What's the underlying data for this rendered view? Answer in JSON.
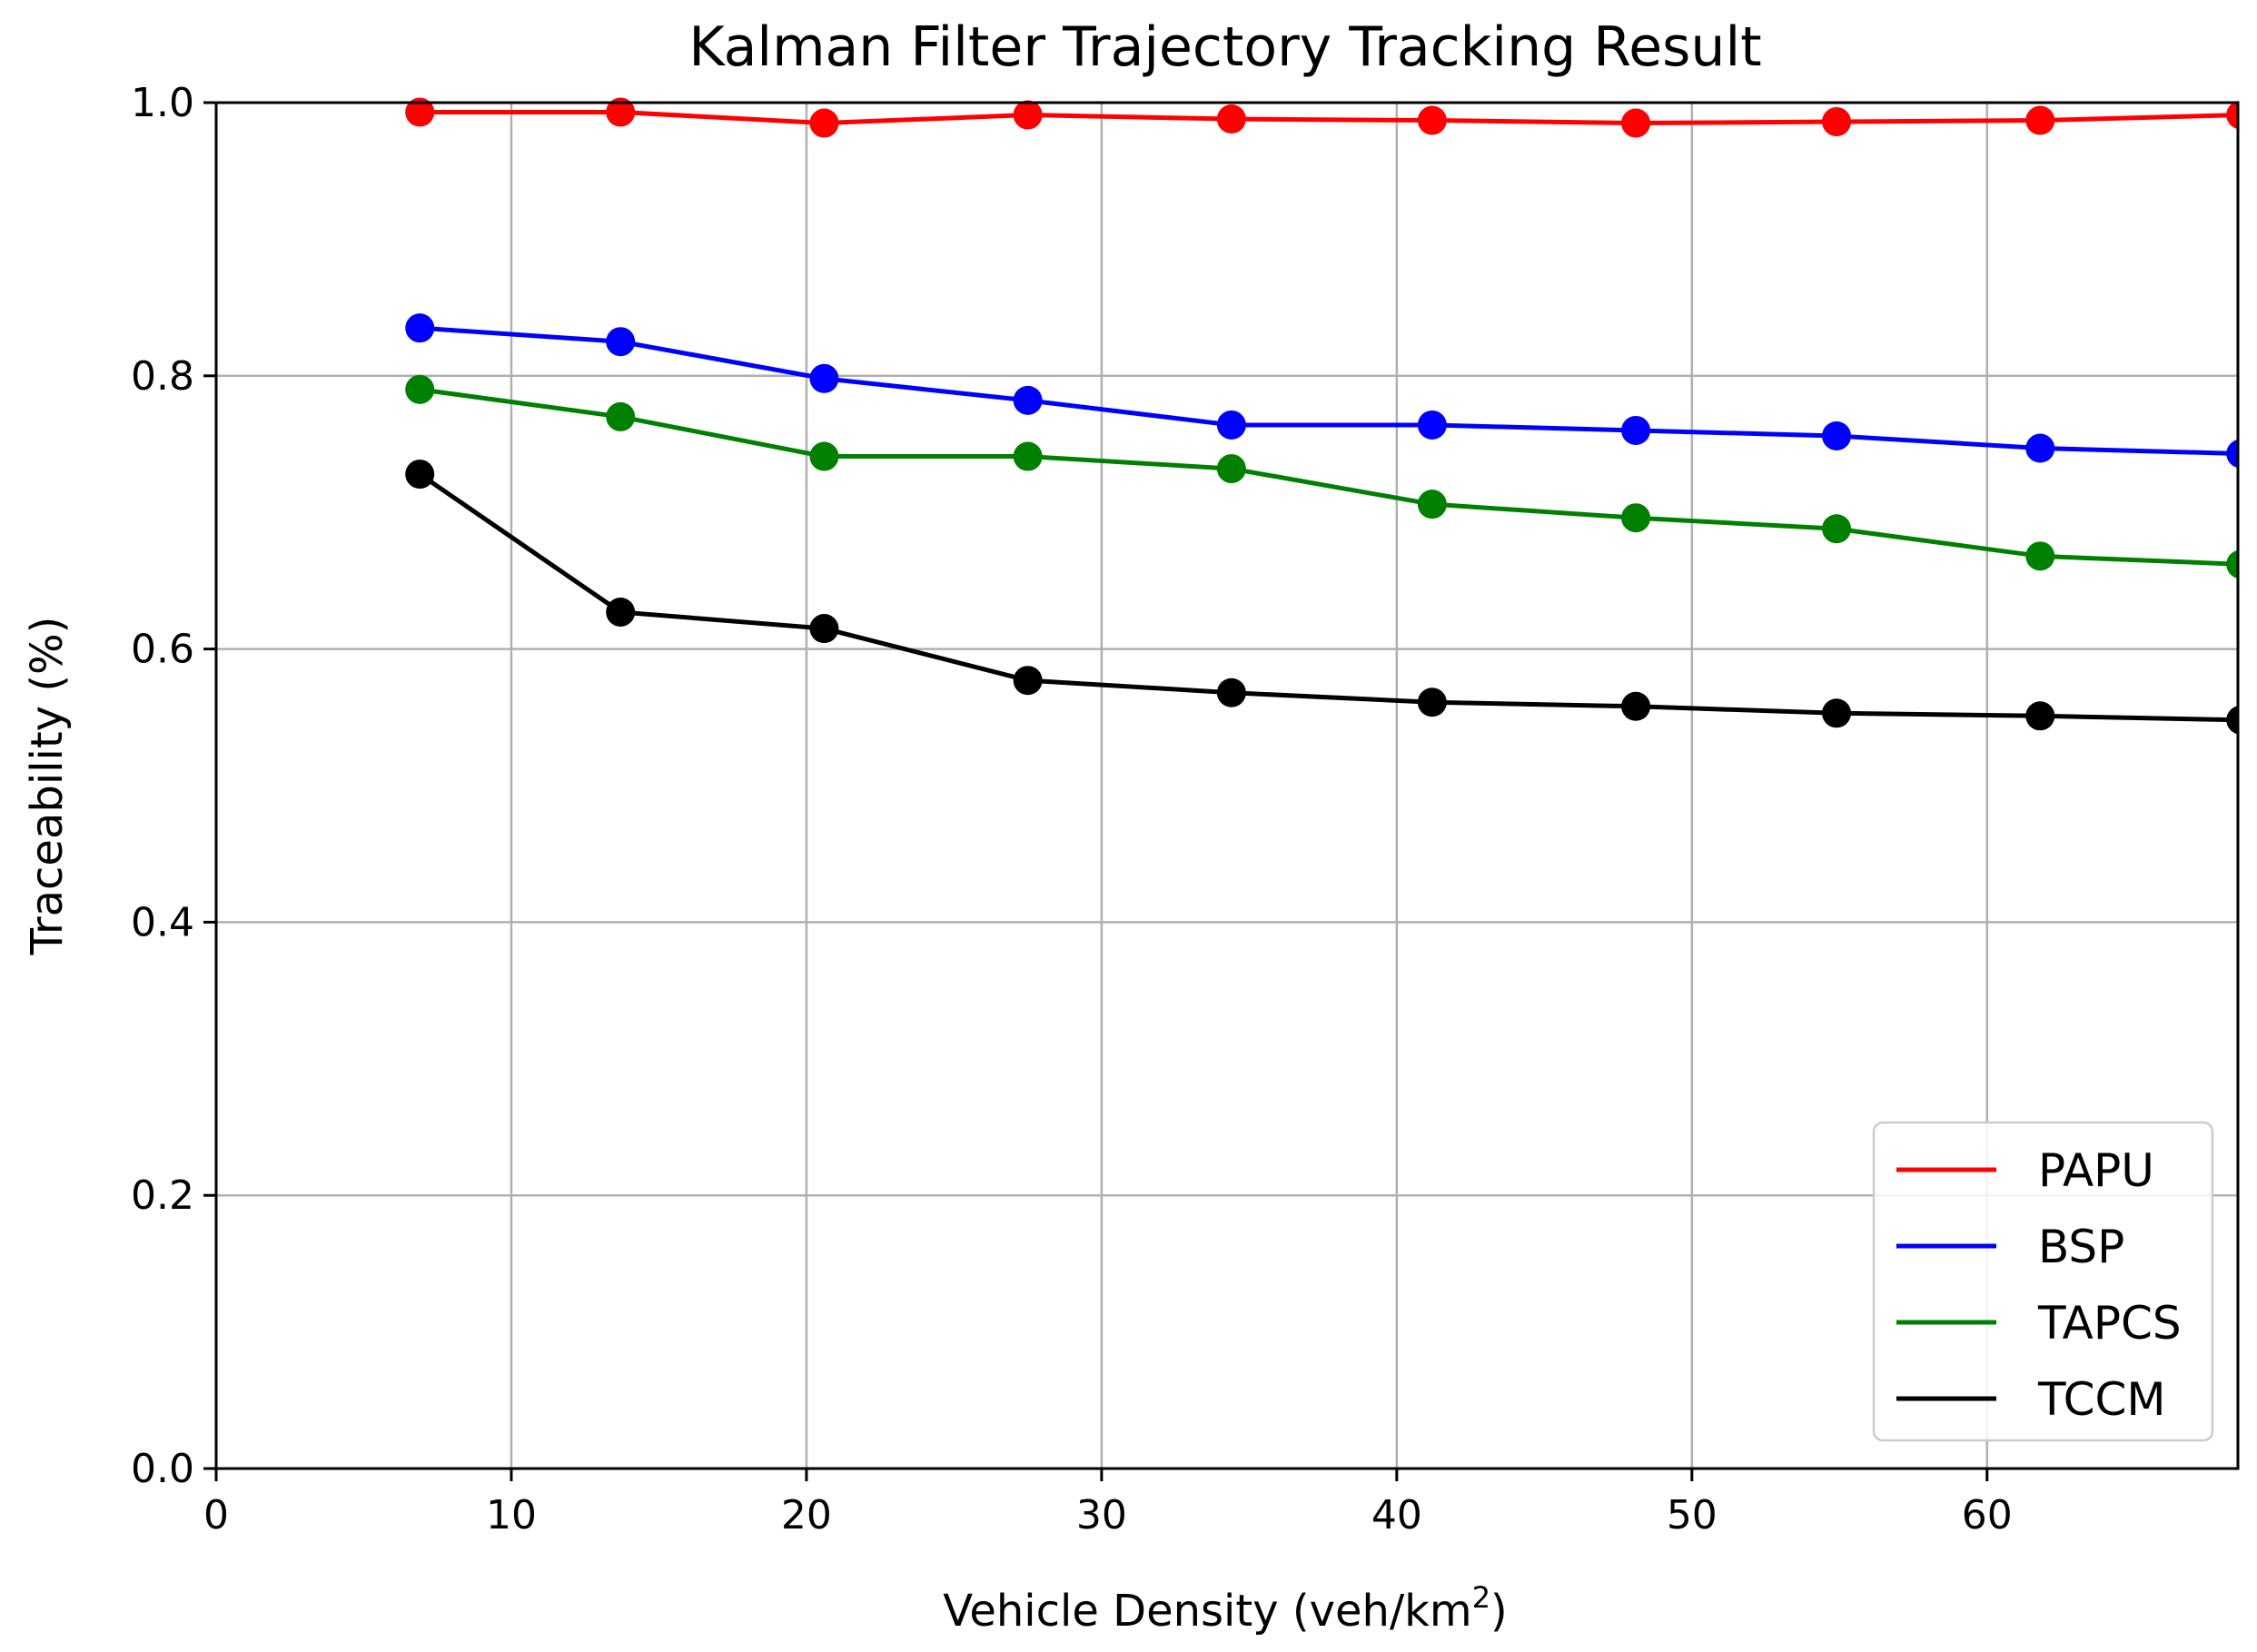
{
  "chart_data": {
    "type": "line",
    "title": "Kalman Filter Trajectory Tracking Result",
    "xlabel_main": "Vehicle Density (veh/km",
    "xlabel_sup": "2",
    "xlabel_close": ")",
    "ylabel": "Traceability (%)",
    "xlim": [
      0,
      68.5
    ],
    "ylim": [
      0.0,
      1.0
    ],
    "grid": true,
    "legend_position": "lower-right",
    "x": [
      6.9,
      13.7,
      20.6,
      27.5,
      34.4,
      41.2,
      48.1,
      54.9,
      61.8,
      68.6
    ],
    "x_ticks": [
      {
        "value": 0,
        "label": "0"
      },
      {
        "value": 10,
        "label": "10"
      },
      {
        "value": 20,
        "label": "20"
      },
      {
        "value": 30,
        "label": "30"
      },
      {
        "value": 40,
        "label": "40"
      },
      {
        "value": 50,
        "label": "50"
      },
      {
        "value": 60,
        "label": "60"
      }
    ],
    "y_ticks": [
      {
        "value": 0.0,
        "label": "0.0"
      },
      {
        "value": 0.2,
        "label": "0.2"
      },
      {
        "value": 0.4,
        "label": "0.4"
      },
      {
        "value": 0.6,
        "label": "0.6"
      },
      {
        "value": 0.8,
        "label": "0.8"
      },
      {
        "value": 1.0,
        "label": "1.0"
      }
    ],
    "series": [
      {
        "name": "PAPU",
        "color": "#ff0000",
        "values": [
          0.993,
          0.993,
          0.985,
          0.991,
          0.988,
          0.987,
          0.985,
          0.986,
          0.987,
          0.991
        ]
      },
      {
        "name": "BSP",
        "color": "#0000ff",
        "values": [
          0.835,
          0.825,
          0.798,
          0.782,
          0.764,
          0.764,
          0.76,
          0.756,
          0.747,
          0.743
        ]
      },
      {
        "name": "TAPCS",
        "color": "#008000",
        "values": [
          0.79,
          0.77,
          0.741,
          0.741,
          0.732,
          0.706,
          0.696,
          0.688,
          0.668,
          0.662
        ]
      },
      {
        "name": "TCCM",
        "color": "#000000",
        "values": [
          0.728,
          0.627,
          0.615,
          0.577,
          0.568,
          0.561,
          0.558,
          0.553,
          0.551,
          0.548
        ]
      }
    ]
  }
}
